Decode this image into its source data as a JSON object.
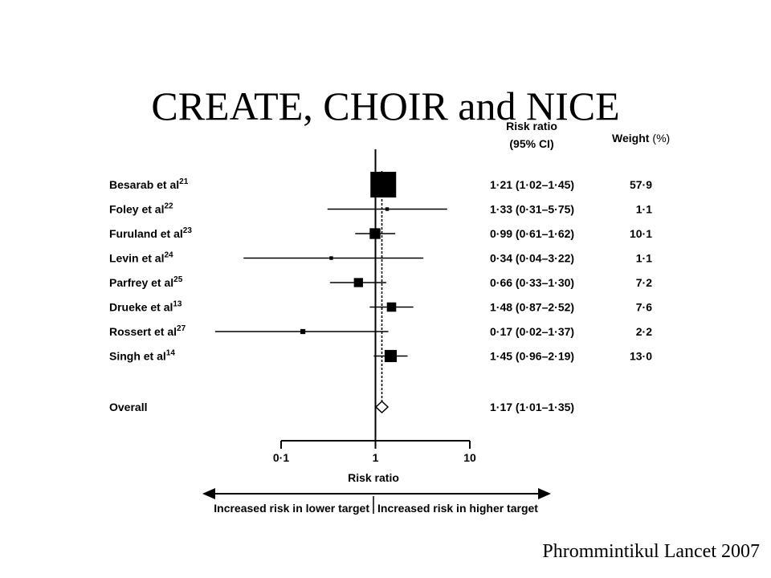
{
  "slide": {
    "title": "CREATE, CHOIR and NICE",
    "citation": "Phrommintikul Lancet 2007"
  },
  "chart_data": {
    "type": "forest",
    "x_scale": "log",
    "xlim": [
      0.1,
      10
    ],
    "x_ticks": [
      0.1,
      1,
      10
    ],
    "x_tick_labels": [
      "0·1",
      "1",
      "10"
    ],
    "xlabel": "Risk ratio",
    "col_headers": {
      "rr_line1": "Risk ratio",
      "rr_line2": "(95% CI)",
      "weight_bold": "Weight",
      "weight_unit": "(%)"
    },
    "studies": [
      {
        "name": "Besarab et al",
        "ref": "21",
        "rr": 1.21,
        "lo": 1.02,
        "hi": 1.45,
        "ci_text": "1·21 (1·02–1·45)",
        "weight": 57.9,
        "weight_text": "57·9"
      },
      {
        "name": "Foley et al",
        "ref": "22",
        "rr": 1.33,
        "lo": 0.31,
        "hi": 5.75,
        "ci_text": "1·33 (0·31–5·75)",
        "weight": 1.1,
        "weight_text": "1·1"
      },
      {
        "name": "Furuland et al",
        "ref": "23",
        "rr": 0.99,
        "lo": 0.61,
        "hi": 1.62,
        "ci_text": "0·99 (0·61–1·62)",
        "weight": 10.1,
        "weight_text": "10·1"
      },
      {
        "name": "Levin et al",
        "ref": "24",
        "rr": 0.34,
        "lo": 0.04,
        "hi": 3.22,
        "ci_text": "0·34 (0·04–3·22)",
        "weight": 1.1,
        "weight_text": "1·1"
      },
      {
        "name": "Parfrey et al",
        "ref": "25",
        "rr": 0.66,
        "lo": 0.33,
        "hi": 1.3,
        "ci_text": "0·66 (0·33–1·30)",
        "weight": 7.2,
        "weight_text": "7·2"
      },
      {
        "name": "Drueke et al",
        "ref": "13",
        "rr": 1.48,
        "lo": 0.87,
        "hi": 2.52,
        "ci_text": "1·48 (0·87–2·52)",
        "weight": 7.6,
        "weight_text": "7·6"
      },
      {
        "name": "Rossert et al",
        "ref": "27",
        "rr": 0.17,
        "lo": 0.02,
        "hi": 1.37,
        "ci_text": "0·17 (0·02–1·37)",
        "weight": 2.2,
        "weight_text": "2·2"
      },
      {
        "name": "Singh et al",
        "ref": "14",
        "rr": 1.45,
        "lo": 0.96,
        "hi": 2.19,
        "ci_text": "1·45 (0·96–2·19)",
        "weight": 13.0,
        "weight_text": "13·0"
      }
    ],
    "overall": {
      "name": "Overall",
      "rr": 1.17,
      "lo": 1.01,
      "hi": 1.35,
      "ci_text": "1·17 (1·01–1·35)"
    },
    "direction_labels": {
      "left": "Increased risk in lower target",
      "right": "Increased risk in higher target"
    }
  }
}
